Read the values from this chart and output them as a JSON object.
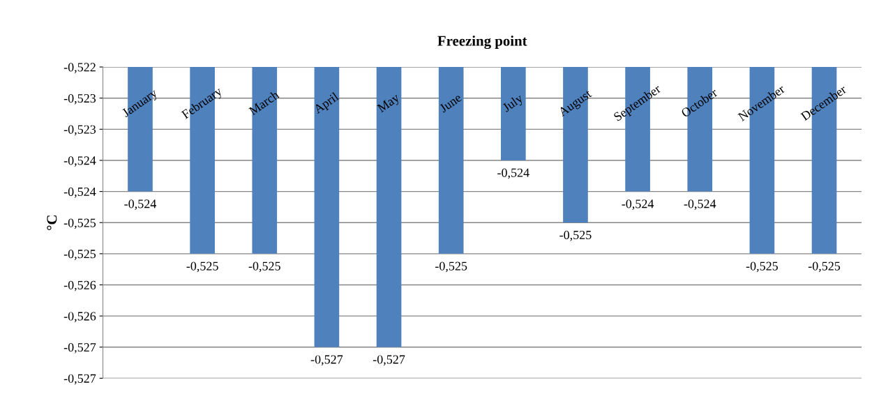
{
  "chart_data": {
    "type": "bar",
    "title": "Freezing point",
    "ylabel": "°C",
    "categories": [
      "January",
      "February",
      "March",
      "April",
      "May",
      "June",
      "July",
      "August",
      "September",
      "October",
      "November",
      "December"
    ],
    "values": [
      -0.524,
      -0.525,
      -0.525,
      -0.5265,
      -0.5265,
      -0.525,
      -0.5235,
      -0.5245,
      -0.524,
      -0.524,
      -0.525,
      -0.525
    ],
    "value_labels": [
      "-0,524",
      "-0,525",
      "-0,525",
      "-0,527",
      "-0,527",
      "-0,525",
      "-0,524",
      "-0,525",
      "-0,524",
      "-0,524",
      "-0,525",
      "-0,525"
    ],
    "color": "#4f81bd",
    "ylim": [
      -0.527,
      -0.522
    ],
    "yticks": [
      {
        "value": -0.522,
        "label": "-0,522"
      },
      {
        "value": -0.5225,
        "label": "-0,523"
      },
      {
        "value": -0.523,
        "label": "-0,523"
      },
      {
        "value": -0.5235,
        "label": "-0,524"
      },
      {
        "value": -0.524,
        "label": "-0,524"
      },
      {
        "value": -0.5245,
        "label": "-0,525"
      },
      {
        "value": -0.525,
        "label": "-0,525"
      },
      {
        "value": -0.5255,
        "label": "-0,526"
      },
      {
        "value": -0.526,
        "label": "-0,526"
      },
      {
        "value": -0.5265,
        "label": "-0,527"
      },
      {
        "value": -0.527,
        "label": "-0,527"
      }
    ],
    "grid": "y",
    "legend": false
  }
}
